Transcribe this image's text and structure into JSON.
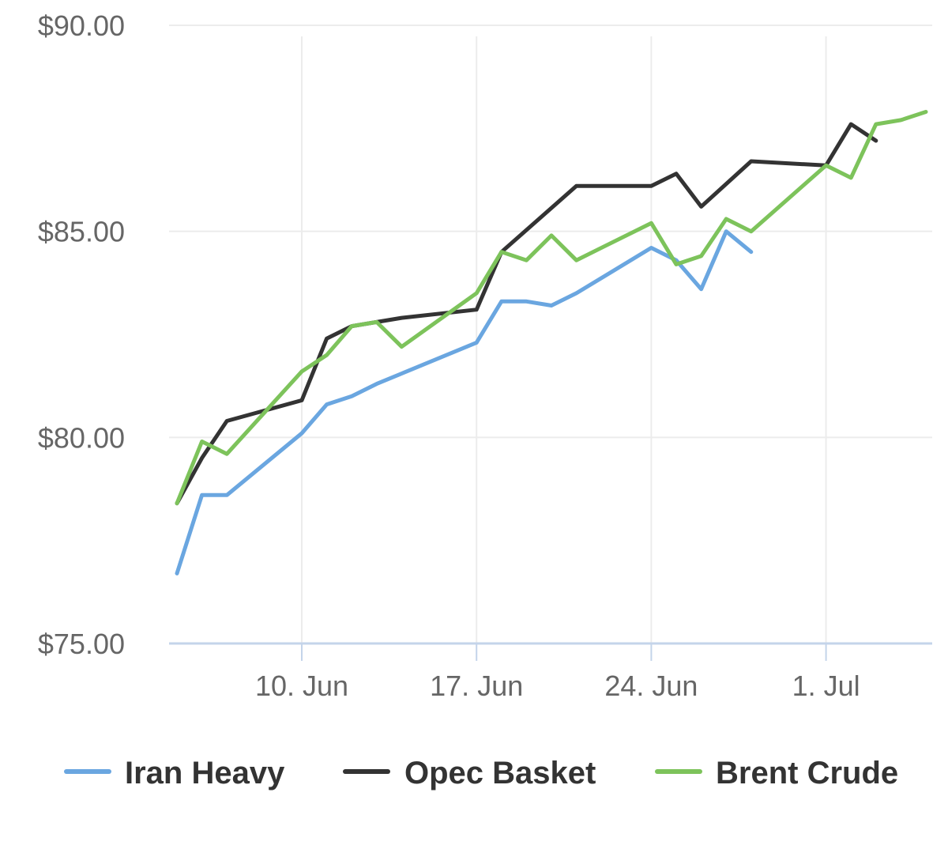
{
  "chart_data": {
    "type": "line",
    "title": "",
    "xlabel": "",
    "ylabel": "",
    "x_tick_labels": [
      "10. Jun",
      "17. Jun",
      "24. Jun",
      "1. Jul"
    ],
    "y_tick_labels": [
      "$75.00",
      "$80.00",
      "$85.00",
      "$90.00"
    ],
    "y_ticks": [
      75,
      80,
      85,
      90
    ],
    "ylim": [
      75,
      90
    ],
    "xlim": [
      "2024-06-05",
      "2024-07-05"
    ],
    "grid": true,
    "legend_position": "bottom",
    "series": [
      {
        "name": "Iran Heavy",
        "color": "#6aa6e0",
        "points": [
          [
            "2024-06-05",
            76.7
          ],
          [
            "2024-06-06",
            78.6
          ],
          [
            "2024-06-07",
            78.6
          ],
          [
            "2024-06-10",
            80.1
          ],
          [
            "2024-06-11",
            80.8
          ],
          [
            "2024-06-12",
            81.0
          ],
          [
            "2024-06-13",
            81.3
          ],
          [
            "2024-06-17",
            82.3
          ],
          [
            "2024-06-18",
            83.3
          ],
          [
            "2024-06-19",
            83.3
          ],
          [
            "2024-06-20",
            83.2
          ],
          [
            "2024-06-21",
            83.5
          ],
          [
            "2024-06-24",
            84.6
          ],
          [
            "2024-06-25",
            84.3
          ],
          [
            "2024-06-26",
            83.6
          ],
          [
            "2024-06-27",
            85.0
          ],
          [
            "2024-06-28",
            84.5
          ]
        ]
      },
      {
        "name": "Opec Basket",
        "color": "#333333",
        "points": [
          [
            "2024-06-05",
            78.4
          ],
          [
            "2024-06-06",
            79.5
          ],
          [
            "2024-06-07",
            80.4
          ],
          [
            "2024-06-10",
            80.9
          ],
          [
            "2024-06-11",
            82.4
          ],
          [
            "2024-06-12",
            82.7
          ],
          [
            "2024-06-13",
            82.8
          ],
          [
            "2024-06-14",
            82.9
          ],
          [
            "2024-06-17",
            83.1
          ],
          [
            "2024-06-18",
            84.5
          ],
          [
            "2024-06-21",
            86.1
          ],
          [
            "2024-06-24",
            86.1
          ],
          [
            "2024-06-25",
            86.4
          ],
          [
            "2024-06-26",
            85.6
          ],
          [
            "2024-06-28",
            86.7
          ],
          [
            "2024-07-01",
            86.6
          ],
          [
            "2024-07-02",
            87.6
          ],
          [
            "2024-07-03",
            87.2
          ]
        ]
      },
      {
        "name": "Brent Crude",
        "color": "#7dc35b",
        "points": [
          [
            "2024-06-05",
            78.4
          ],
          [
            "2024-06-06",
            79.9
          ],
          [
            "2024-06-07",
            79.6
          ],
          [
            "2024-06-10",
            81.6
          ],
          [
            "2024-06-11",
            82.0
          ],
          [
            "2024-06-12",
            82.7
          ],
          [
            "2024-06-13",
            82.8
          ],
          [
            "2024-06-14",
            82.2
          ],
          [
            "2024-06-17",
            83.5
          ],
          [
            "2024-06-18",
            84.5
          ],
          [
            "2024-06-19",
            84.3
          ],
          [
            "2024-06-20",
            84.9
          ],
          [
            "2024-06-21",
            84.3
          ],
          [
            "2024-06-24",
            85.2
          ],
          [
            "2024-06-25",
            84.2
          ],
          [
            "2024-06-26",
            84.4
          ],
          [
            "2024-06-27",
            85.3
          ],
          [
            "2024-06-28",
            85.0
          ],
          [
            "2024-07-01",
            86.6
          ],
          [
            "2024-07-02",
            86.3
          ],
          [
            "2024-07-03",
            87.6
          ],
          [
            "2024-07-04",
            87.7
          ],
          [
            "2024-07-05",
            87.9
          ]
        ]
      }
    ]
  }
}
